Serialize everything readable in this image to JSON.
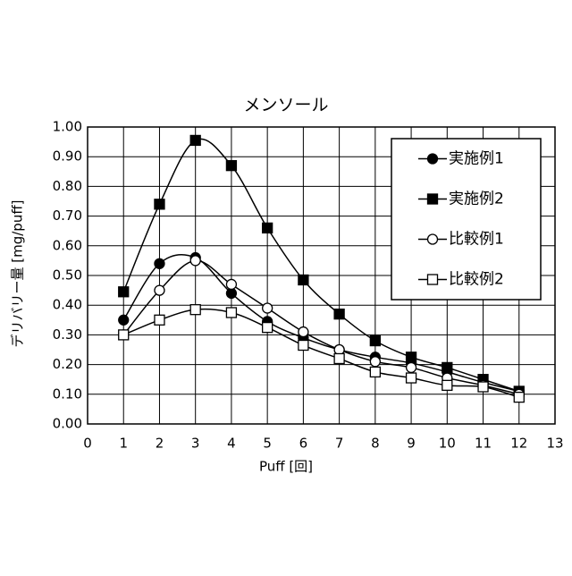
{
  "chart_data": {
    "type": "line",
    "title": "メンソール",
    "x_label": "Puff [回]",
    "y_label": "デリバリー量 [mg/puff]",
    "x": [
      1,
      2,
      3,
      4,
      5,
      6,
      7,
      8,
      9,
      10,
      11,
      12
    ],
    "series": [
      {
        "name": "実施例1",
        "color": "#000000",
        "marker": "circle",
        "filled": true,
        "values": [
          0.35,
          0.54,
          0.56,
          0.44,
          0.345,
          0.29,
          0.25,
          0.225,
          0.205,
          0.175,
          0.14,
          0.11
        ]
      },
      {
        "name": "実施例2",
        "color": "#000000",
        "marker": "square",
        "filled": true,
        "values": [
          0.445,
          0.74,
          0.955,
          0.87,
          0.66,
          0.485,
          0.37,
          0.28,
          0.225,
          0.19,
          0.15,
          0.11
        ]
      },
      {
        "name": "比較例1",
        "color": "#000000",
        "marker": "circle",
        "filled": false,
        "values": [
          0.3,
          0.45,
          0.55,
          0.47,
          0.39,
          0.31,
          0.25,
          0.21,
          0.19,
          0.155,
          0.13,
          0.1
        ]
      },
      {
        "name": "比較例2",
        "color": "#000000",
        "marker": "square",
        "filled": false,
        "values": [
          0.3,
          0.35,
          0.385,
          0.375,
          0.325,
          0.265,
          0.22,
          0.175,
          0.155,
          0.13,
          0.125,
          0.09
        ]
      }
    ],
    "smooth": true,
    "xlim": [
      0,
      13
    ],
    "xticks": [
      0,
      1,
      2,
      3,
      4,
      5,
      6,
      7,
      8,
      9,
      10,
      11,
      12,
      13
    ],
    "ylim": [
      0,
      1
    ],
    "yticks": [
      {
        "value": 0,
        "label": "0.00"
      },
      {
        "value": 0.1,
        "label": "0.10"
      },
      {
        "value": 0.2,
        "label": "0.20"
      },
      {
        "value": 0.3,
        "label": "0.30"
      },
      {
        "value": 0.4,
        "label": "0.40"
      },
      {
        "value": 0.5,
        "label": "0.50"
      },
      {
        "value": 0.6,
        "label": "0.60"
      },
      {
        "value": 0.7,
        "label": "0.70"
      },
      {
        "value": 0.8,
        "label": "0.80"
      },
      {
        "value": 0.9,
        "label": "0.90"
      },
      {
        "value": 1,
        "label": "1.00"
      }
    ],
    "grid": true,
    "legend": "upper right"
  }
}
